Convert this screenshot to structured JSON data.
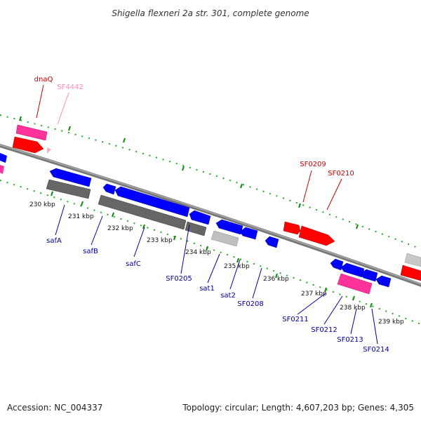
{
  "title": "Shigella flexneri 2a str. 301, complete genome",
  "footer": {
    "accession": "Accession: NC_004337",
    "topology": "Topology: circular; Length: 4,607,203 bp; Genes: 4,305"
  },
  "colors": {
    "forward_gene": "#ff0000",
    "reverse_gene": "#0000ff",
    "pseudo_gene": "#ff3399",
    "rna_or_misc": "#666666",
    "backbone": "#888888",
    "ticks": "#008800",
    "label_forward": "#cc0000",
    "label_reverse": "#000099",
    "label_pink": "#ff88bb"
  },
  "scale": {
    "unit": "kbp",
    "ticks": [
      "230 kbp",
      "231 kbp",
      "232 kbp",
      "233 kbp",
      "234 kbp",
      "235 kbp",
      "236 kbp",
      "237 kbp",
      "238 kbp",
      "239 kbp"
    ]
  },
  "gene_labels": {
    "dnaQ": "dnaQ",
    "SF4442": "SF4442",
    "SF0209": "SF0209",
    "SF0210": "SF0210",
    "safA": "safA",
    "safB": "safB",
    "safC": "safC",
    "SF0205": "SF0205",
    "sat1": "sat1",
    "sat2": "sat2",
    "SF0208": "SF0208",
    "SF0211": "SF0211",
    "SF0212": "SF0212",
    "SF0213": "SF0213",
    "SF0214": "SF0214"
  }
}
